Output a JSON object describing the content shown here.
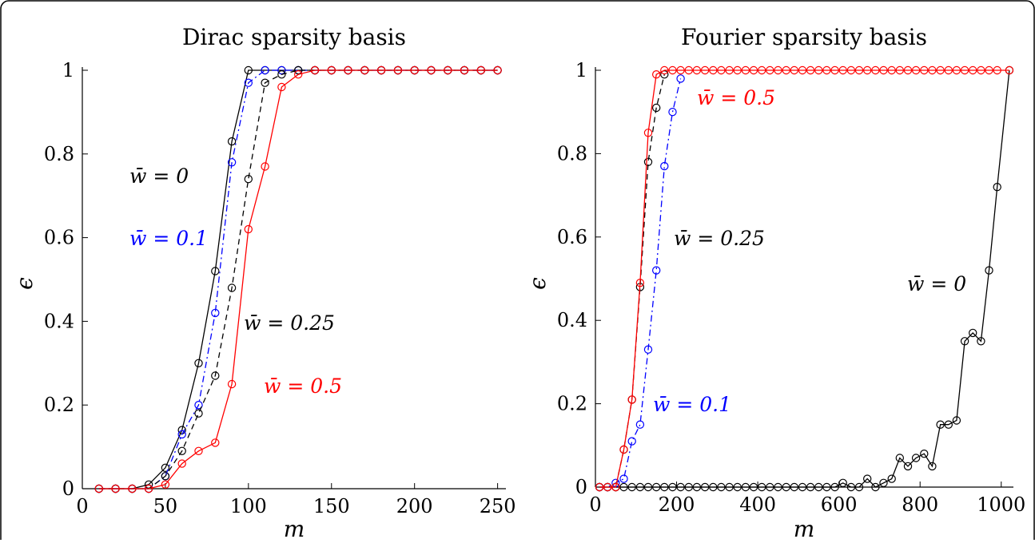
{
  "figure": {
    "panels": [
      {
        "title": "Dirac sparsity basis",
        "xlabel": "m",
        "ylabel": "ϵ",
        "xlim": [
          0,
          255
        ],
        "ylim": [
          0,
          1
        ],
        "xticks": [
          0,
          50,
          100,
          150,
          200,
          250
        ],
        "yticks": [
          0,
          0.2,
          0.4,
          0.6,
          0.8,
          1
        ],
        "annotations": [
          {
            "text": "w̄ = 0",
            "color": "#000000"
          },
          {
            "text": "w̄ = 0.1",
            "color": "#0000ff"
          },
          {
            "text": "w̄ = 0.25",
            "color": "#000000"
          },
          {
            "text": "w̄ = 0.5",
            "color": "#ff0000"
          }
        ]
      },
      {
        "title": "Fourier sparsity basis",
        "xlabel": "m",
        "ylabel": "ϵ",
        "xlim": [
          0,
          1030
        ],
        "ylim": [
          0,
          1
        ],
        "xticks": [
          0,
          200,
          400,
          600,
          800,
          1000
        ],
        "yticks": [
          0,
          0.2,
          0.4,
          0.6,
          0.8,
          1
        ],
        "annotations": [
          {
            "text": "w̄ = 0.5",
            "color": "#ff0000"
          },
          {
            "text": "w̄ = 0.25",
            "color": "#000000"
          },
          {
            "text": "w̄ = 0",
            "color": "#000000"
          },
          {
            "text": "w̄ = 0.1",
            "color": "#0000ff"
          }
        ]
      }
    ]
  },
  "chart_data": [
    {
      "type": "line",
      "title": "Dirac sparsity basis",
      "xlabel": "m",
      "ylabel": "ϵ",
      "xlim": [
        0,
        255
      ],
      "ylim": [
        0,
        1
      ],
      "grid": false,
      "legend": "none",
      "series": [
        {
          "name": "w̄ = 0",
          "color": "#000000",
          "dash": "",
          "x": [
            10,
            20,
            30,
            40,
            50,
            60,
            70,
            80,
            90,
            100,
            110,
            120,
            130,
            140,
            150,
            160,
            170,
            180,
            190,
            200,
            210,
            220,
            230,
            240,
            250
          ],
          "y": [
            0,
            0,
            0,
            0.01,
            0.05,
            0.14,
            0.3,
            0.52,
            0.83,
            1,
            1,
            1,
            1,
            1,
            1,
            1,
            1,
            1,
            1,
            1,
            1,
            1,
            1,
            1,
            1
          ]
        },
        {
          "name": "w̄ = 0.1",
          "color": "#0000ff",
          "dash": "dashdot",
          "x": [
            10,
            20,
            30,
            40,
            50,
            60,
            70,
            80,
            90,
            100,
            110,
            120,
            130,
            140,
            150,
            160,
            170,
            180,
            190,
            200,
            210,
            220,
            230,
            240,
            250
          ],
          "y": [
            0,
            0,
            0,
            0,
            0.03,
            0.13,
            0.2,
            0.42,
            0.78,
            0.97,
            1,
            1,
            1,
            1,
            1,
            1,
            1,
            1,
            1,
            1,
            1,
            1,
            1,
            1,
            1
          ]
        },
        {
          "name": "w̄ = 0.25",
          "color": "#000000",
          "dash": "dashed",
          "x": [
            10,
            20,
            30,
            40,
            50,
            60,
            70,
            80,
            90,
            100,
            110,
            120,
            130,
            140,
            150,
            160,
            170,
            180,
            190,
            200,
            210,
            220,
            230,
            240,
            250
          ],
          "y": [
            0,
            0,
            0,
            0,
            0.03,
            0.09,
            0.18,
            0.27,
            0.48,
            0.74,
            0.97,
            0.99,
            1,
            1,
            1,
            1,
            1,
            1,
            1,
            1,
            1,
            1,
            1,
            1,
            1
          ]
        },
        {
          "name": "w̄ = 0.5",
          "color": "#ff0000",
          "dash": "",
          "x": [
            10,
            20,
            30,
            40,
            50,
            60,
            70,
            80,
            90,
            100,
            110,
            120,
            130,
            140,
            150,
            160,
            170,
            180,
            190,
            200,
            210,
            220,
            230,
            240,
            250
          ],
          "y": [
            0,
            0,
            0,
            0,
            0.01,
            0.06,
            0.09,
            0.11,
            0.25,
            0.62,
            0.77,
            0.96,
            0.99,
            1,
            1,
            1,
            1,
            1,
            1,
            1,
            1,
            1,
            1,
            1,
            1
          ]
        }
      ]
    },
    {
      "type": "line",
      "title": "Fourier sparsity basis",
      "xlabel": "m",
      "ylabel": "ϵ",
      "xlim": [
        0,
        1030
      ],
      "ylim": [
        0,
        1
      ],
      "grid": false,
      "legend": "none",
      "series": [
        {
          "name": "w̄ = 0",
          "color": "#000000",
          "dash": "",
          "x": [
            10,
            30,
            50,
            70,
            90,
            110,
            130,
            150,
            170,
            190,
            210,
            230,
            250,
            270,
            290,
            310,
            330,
            350,
            370,
            390,
            410,
            430,
            450,
            470,
            490,
            510,
            530,
            550,
            570,
            590,
            610,
            630,
            650,
            670,
            690,
            710,
            730,
            750,
            770,
            790,
            810,
            830,
            850,
            870,
            890,
            910,
            930,
            950,
            970,
            990,
            1020
          ],
          "y": [
            0,
            0,
            0,
            0,
            0,
            0,
            0,
            0,
            0,
            0,
            0,
            0,
            0,
            0,
            0,
            0,
            0,
            0,
            0,
            0,
            0,
            0,
            0,
            0,
            0,
            0,
            0,
            0,
            0,
            0,
            0.01,
            0,
            0,
            0.02,
            0,
            0.01,
            0.02,
            0.07,
            0.05,
            0.07,
            0.08,
            0.05,
            0.15,
            0.15,
            0.16,
            0.35,
            0.37,
            0.35,
            0.52,
            0.72,
            1
          ]
        },
        {
          "name": "w̄ = 0.1",
          "color": "#0000ff",
          "dash": "dashdot",
          "x": [
            10,
            30,
            50,
            70,
            90,
            110,
            130,
            150,
            170,
            190,
            210
          ],
          "y": [
            0,
            0,
            0.01,
            0.02,
            0.11,
            0.15,
            0.33,
            0.52,
            0.77,
            0.9,
            0.98
          ]
        },
        {
          "name": "w̄ = 0.25",
          "color": "#000000",
          "dash": "dashed",
          "x": [
            10,
            30,
            50,
            70,
            90,
            110,
            130,
            150,
            170
          ],
          "y": [
            0,
            0,
            0,
            0.09,
            0.21,
            0.48,
            0.78,
            0.91,
            0.99
          ]
        },
        {
          "name": "w̄ = 0.5",
          "color": "#ff0000",
          "dash": "",
          "x": [
            10,
            30,
            50,
            70,
            90,
            110,
            130,
            150,
            170,
            190,
            210,
            230,
            250,
            270,
            290,
            310,
            330,
            350,
            370,
            390,
            410,
            430,
            450,
            470,
            490,
            510,
            530,
            550,
            570,
            590,
            610,
            630,
            650,
            670,
            690,
            710,
            730,
            750,
            770,
            790,
            810,
            830,
            850,
            870,
            890,
            910,
            930,
            950,
            970,
            990,
            1020
          ],
          "y": [
            0,
            0,
            0,
            0.09,
            0.21,
            0.49,
            0.85,
            0.99,
            1,
            1,
            1,
            1,
            1,
            1,
            1,
            1,
            1,
            1,
            1,
            1,
            1,
            1,
            1,
            1,
            1,
            1,
            1,
            1,
            1,
            1,
            1,
            1,
            1,
            1,
            1,
            1,
            1,
            1,
            1,
            1,
            1,
            1,
            1,
            1,
            1,
            1,
            1,
            1,
            1,
            1,
            1
          ]
        }
      ]
    }
  ]
}
